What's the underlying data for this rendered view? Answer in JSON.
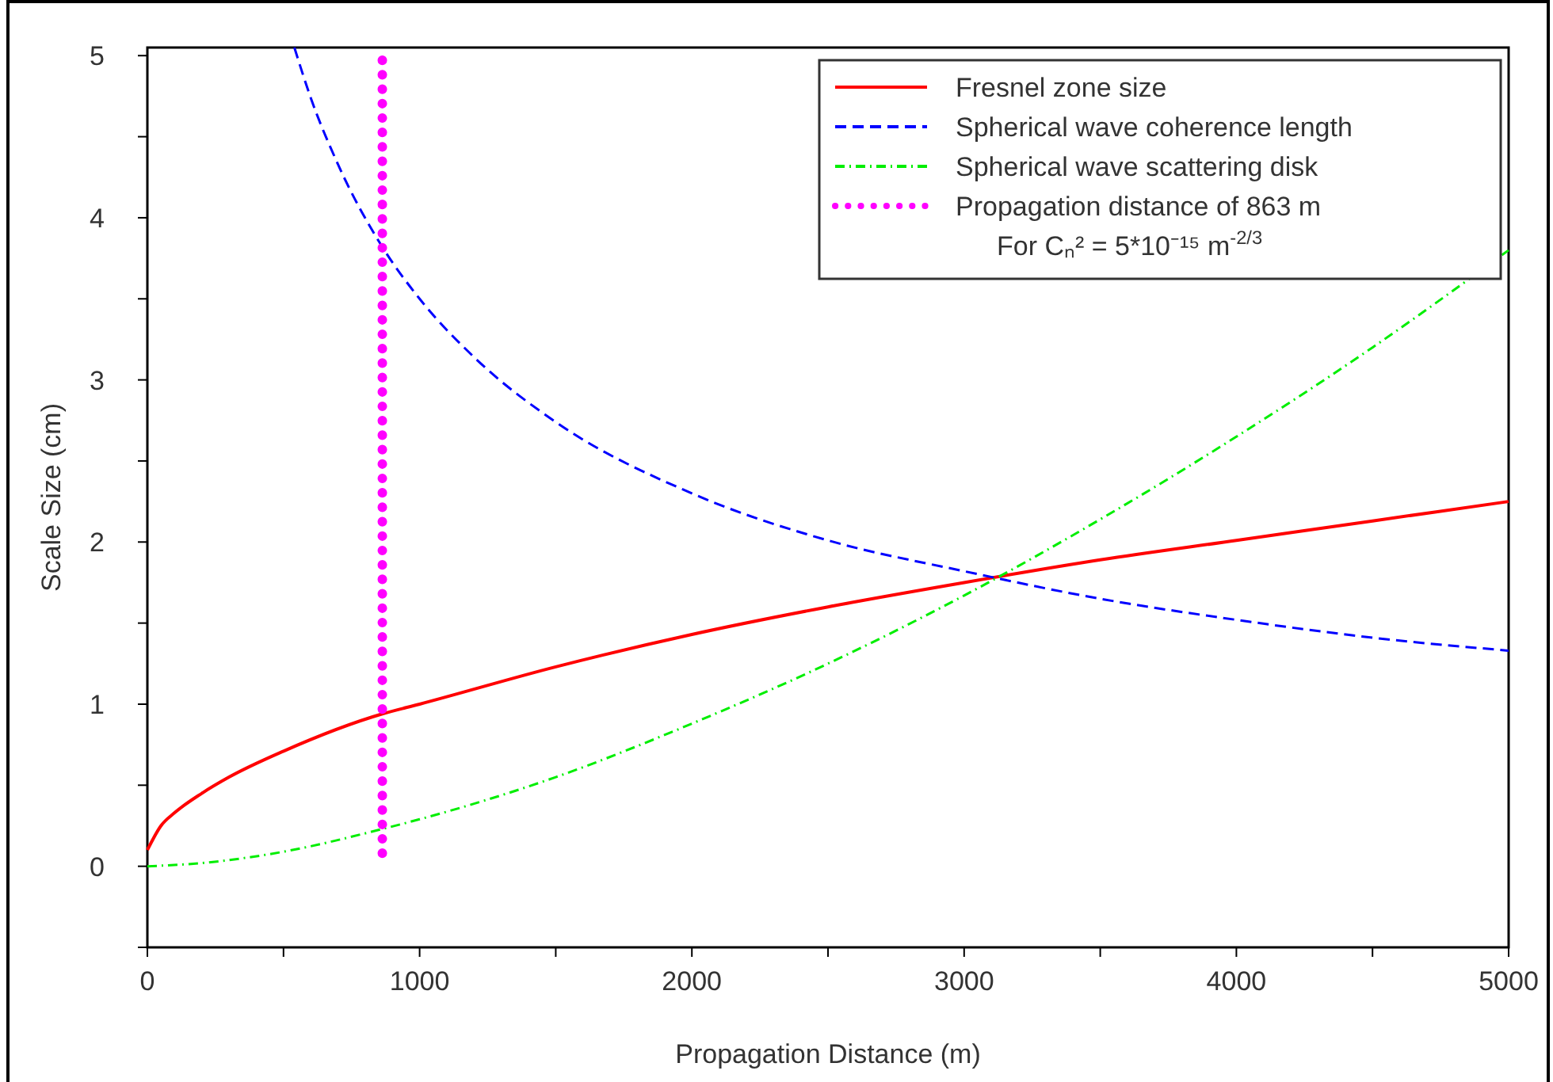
{
  "chart_data": {
    "type": "line",
    "xlabel": "Propagation Distance (m)",
    "ylabel": "Scale Size (cm)",
    "xlim": [
      0,
      5000
    ],
    "ylim": [
      -0.5,
      5.05
    ],
    "xticks": [
      0,
      {
        "value": 500,
        "label": null
      },
      1000,
      {
        "value": 1500,
        "label": null
      },
      2000,
      {
        "value": 2500,
        "label": null
      },
      3000,
      {
        "value": 3500,
        "label": null
      },
      4000,
      {
        "value": 4500,
        "label": null
      },
      5000
    ],
    "yticks": [
      {
        "value": -0.5,
        "label": null
      },
      0,
      {
        "value": 0.5,
        "label": null
      },
      1,
      {
        "value": 1.5,
        "label": null
      },
      2,
      {
        "value": 2.5,
        "label": null
      },
      3,
      {
        "value": 3.5,
        "label": null
      },
      4,
      {
        "value": 4.5,
        "label": null
      },
      5
    ],
    "grid": false,
    "legend": "top right",
    "annotations": [
      "For Cₙ² = 5*10⁻¹⁵ m$^{-2/3}$"
    ],
    "series": [
      {
        "name": "Fresnel zone size",
        "color": "#ff0000",
        "line_style": "solid",
        "x": [
          0,
          50,
          100,
          200,
          300,
          500,
          863,
          1000,
          1500,
          2000,
          2500,
          3000,
          3500,
          4000,
          4500,
          5000
        ],
        "values": [
          0.1,
          0.25,
          0.33,
          0.45,
          0.55,
          0.71,
          0.94,
          1.0,
          1.23,
          1.43,
          1.6,
          1.75,
          1.89,
          2.01,
          2.13,
          2.25
        ]
      },
      {
        "name": "Spherical wave coherence length",
        "color": "#0000ff",
        "line_style": "dashed",
        "x": [
          540,
          600,
          700,
          863,
          1000,
          1200,
          1500,
          2000,
          2500,
          3000,
          3500,
          4000,
          4500,
          5000
        ],
        "values": [
          5.05,
          4.74,
          4.33,
          3.82,
          3.5,
          3.14,
          2.74,
          2.3,
          2.01,
          1.82,
          1.65,
          1.52,
          1.41,
          1.33
        ]
      },
      {
        "name": "Spherical wave scattering disk",
        "color": "#00ee00",
        "line_style": "dashdot",
        "x": [
          0,
          200,
          500,
          863,
          1000,
          1500,
          2000,
          2500,
          3000,
          3500,
          4000,
          4500,
          5000
        ],
        "values": [
          0,
          0.02,
          0.09,
          0.23,
          0.29,
          0.55,
          0.88,
          1.25,
          1.67,
          2.14,
          2.65,
          3.2,
          3.8
        ]
      },
      {
        "name": "Propagation distance of 863 m",
        "color": "#ff00ff",
        "line_style": "dotted",
        "x": [
          863,
          863
        ],
        "values": [
          0.08,
          5.05
        ]
      }
    ]
  }
}
